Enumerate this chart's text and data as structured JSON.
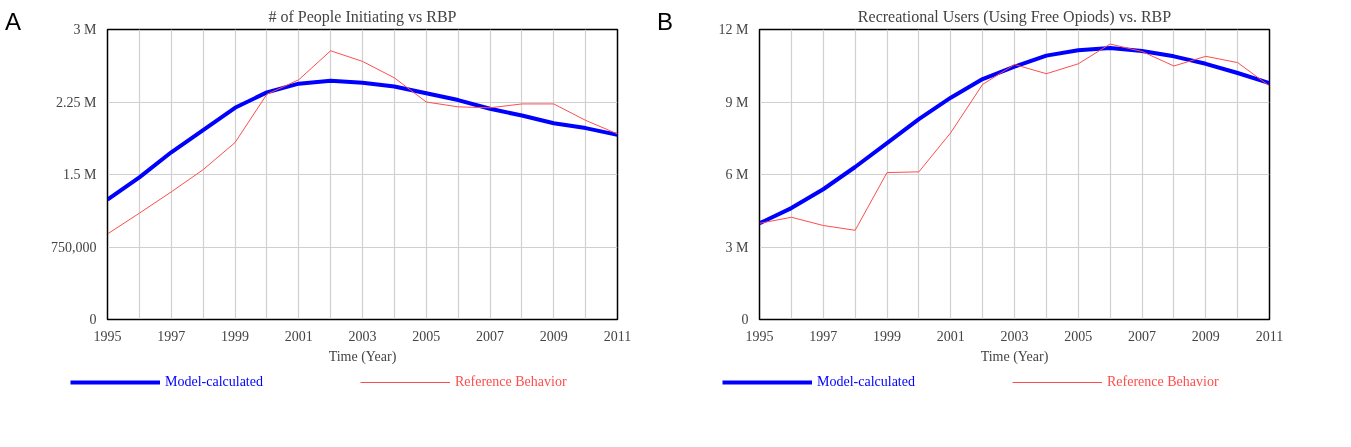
{
  "chart_data": [
    {
      "type": "line",
      "title": "# of People Initiating vs RBP",
      "annotations": [
        "A"
      ],
      "xlabel": "Time (Year)",
      "x": [
        1995,
        1996,
        1997,
        1998,
        1999,
        2000,
        2001,
        2002,
        2003,
        2004,
        2005,
        2006,
        2007,
        2008,
        2009,
        2010,
        2011
      ],
      "series": [
        {
          "name": "Model-calculated",
          "color": "#0000ff",
          "values": [
            1240000,
            1470000,
            1730000,
            1960000,
            2190000,
            2350000,
            2440000,
            2470000,
            2450000,
            2410000,
            2340000,
            2270000,
            2180000,
            2110000,
            2030000,
            1980000,
            1910000
          ]
        },
        {
          "name": "Reference Behavior",
          "color": "#ff4d4d",
          "values": [
            885000,
            1100000,
            1320000,
            1550000,
            1830000,
            2330000,
            2480000,
            2780000,
            2670000,
            2500000,
            2250000,
            2200000,
            2190000,
            2230000,
            2230000,
            2060000,
            1920000
          ]
        }
      ],
      "xlim": [
        1995,
        2011
      ],
      "xticks": [
        1995,
        {
          "value": 1996,
          "label": null
        },
        1997,
        {
          "value": 1998,
          "label": null
        },
        1999,
        {
          "value": 2000,
          "label": null
        },
        2001,
        {
          "value": 2002,
          "label": null
        },
        2003,
        {
          "value": 2004,
          "label": null
        },
        2005,
        {
          "value": 2006,
          "label": null
        },
        2007,
        {
          "value": 2008,
          "label": null
        },
        2009,
        {
          "value": 2010,
          "label": null
        },
        2011
      ],
      "ylim": [
        0,
        3000000
      ],
      "yticks": [
        0,
        {
          "value": 750000,
          "label": "750,000"
        },
        {
          "value": 1500000,
          "label": "1.5 M"
        },
        {
          "value": 2250000,
          "label": "2.25 M"
        },
        {
          "value": 3000000,
          "label": "3 M"
        }
      ],
      "grid": true,
      "legend": "bottom",
      "marker": "none",
      "line_style": "solid"
    },
    {
      "type": "line",
      "title": "Recreational Users (Using Free Opiods) vs. RBP",
      "annotations": [
        "B"
      ],
      "xlabel": "Time (Year)",
      "x": [
        1995,
        1996,
        1997,
        1998,
        1999,
        2000,
        2001,
        2002,
        2003,
        2004,
        2005,
        2006,
        2007,
        2008,
        2009,
        2010,
        2011
      ],
      "series": [
        {
          "name": "Model-calculated",
          "color": "#0000ff",
          "values": [
            3980000,
            4610000,
            5390000,
            6310000,
            7300000,
            8290000,
            9180000,
            9950000,
            10460000,
            10920000,
            11140000,
            11230000,
            11110000,
            10890000,
            10580000,
            10200000,
            9780000
          ]
        },
        {
          "name": "Reference Behavior",
          "color": "#ff4d4d",
          "values": [
            3980000,
            4230000,
            3890000,
            3690000,
            6080000,
            6110000,
            7730000,
            9730000,
            10550000,
            10170000,
            10580000,
            11400000,
            11090000,
            10490000,
            10890000,
            10630000,
            9660000
          ]
        }
      ],
      "xlim": [
        1995,
        2011
      ],
      "xticks": [
        1995,
        {
          "value": 1996,
          "label": null
        },
        1997,
        {
          "value": 1998,
          "label": null
        },
        1999,
        {
          "value": 2000,
          "label": null
        },
        2001,
        {
          "value": 2002,
          "label": null
        },
        2003,
        {
          "value": 2004,
          "label": null
        },
        2005,
        {
          "value": 2006,
          "label": null
        },
        2007,
        {
          "value": 2008,
          "label": null
        },
        2009,
        {
          "value": 2010,
          "label": null
        },
        2011
      ],
      "ylim": [
        0,
        12000000
      ],
      "yticks": [
        0,
        {
          "value": 3000000,
          "label": "3 M"
        },
        {
          "value": 6000000,
          "label": "6 M"
        },
        {
          "value": 9000000,
          "label": "9 M"
        },
        {
          "value": 12000000,
          "label": "12 M"
        }
      ],
      "grid": true,
      "legend": "bottom",
      "marker": "none",
      "line_style": "solid"
    }
  ]
}
